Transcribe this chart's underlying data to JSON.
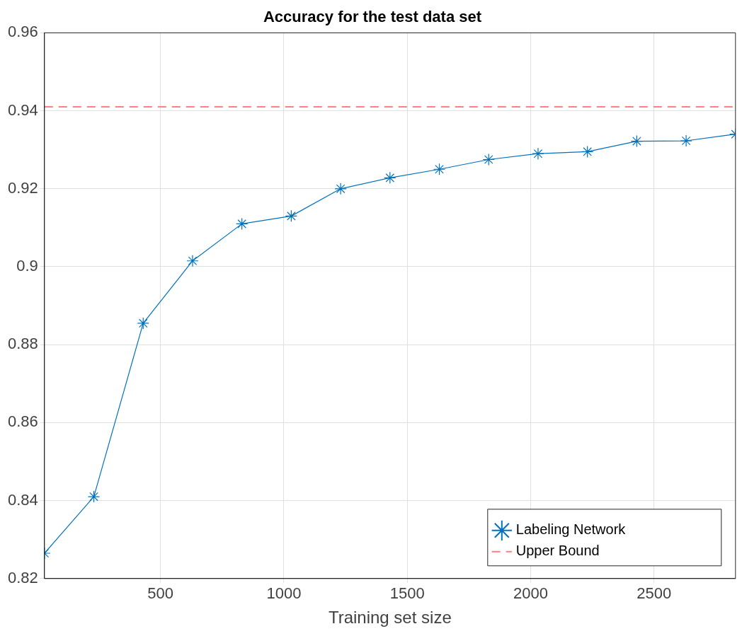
{
  "chart_data": {
    "type": "line",
    "title": "Accuracy for the test data set",
    "xlabel": "Training set size",
    "xlim": [
      30,
      2830
    ],
    "xticks": [
      500,
      1000,
      1500,
      2000,
      2500
    ],
    "ylim": [
      0.82,
      0.96
    ],
    "yticks": [
      0.82,
      0.84,
      0.86,
      0.88,
      0.9,
      0.92,
      0.94,
      0.96
    ],
    "grid": true,
    "legend": "bottom right",
    "marker": "cross",
    "series": [
      {
        "name": "Labeling Network",
        "color": "#0072bd",
        "x": [
          30,
          230,
          430,
          630,
          830,
          1030,
          1230,
          1430,
          1630,
          1830,
          2030,
          2230,
          2430,
          2630,
          2830
        ],
        "values": [
          0.8265,
          0.841,
          0.8855,
          0.9015,
          0.911,
          0.913,
          0.92,
          0.9228,
          0.925,
          0.9275,
          0.929,
          0.9295,
          0.9322,
          0.9323,
          0.934
        ]
      },
      {
        "name": "Upper Bound",
        "color": "#ff8080",
        "type": "line",
        "line_style": "dashed",
        "marker": "none",
        "x": [
          30,
          2830
        ],
        "values": [
          0.941,
          0.941
        ]
      }
    ]
  }
}
